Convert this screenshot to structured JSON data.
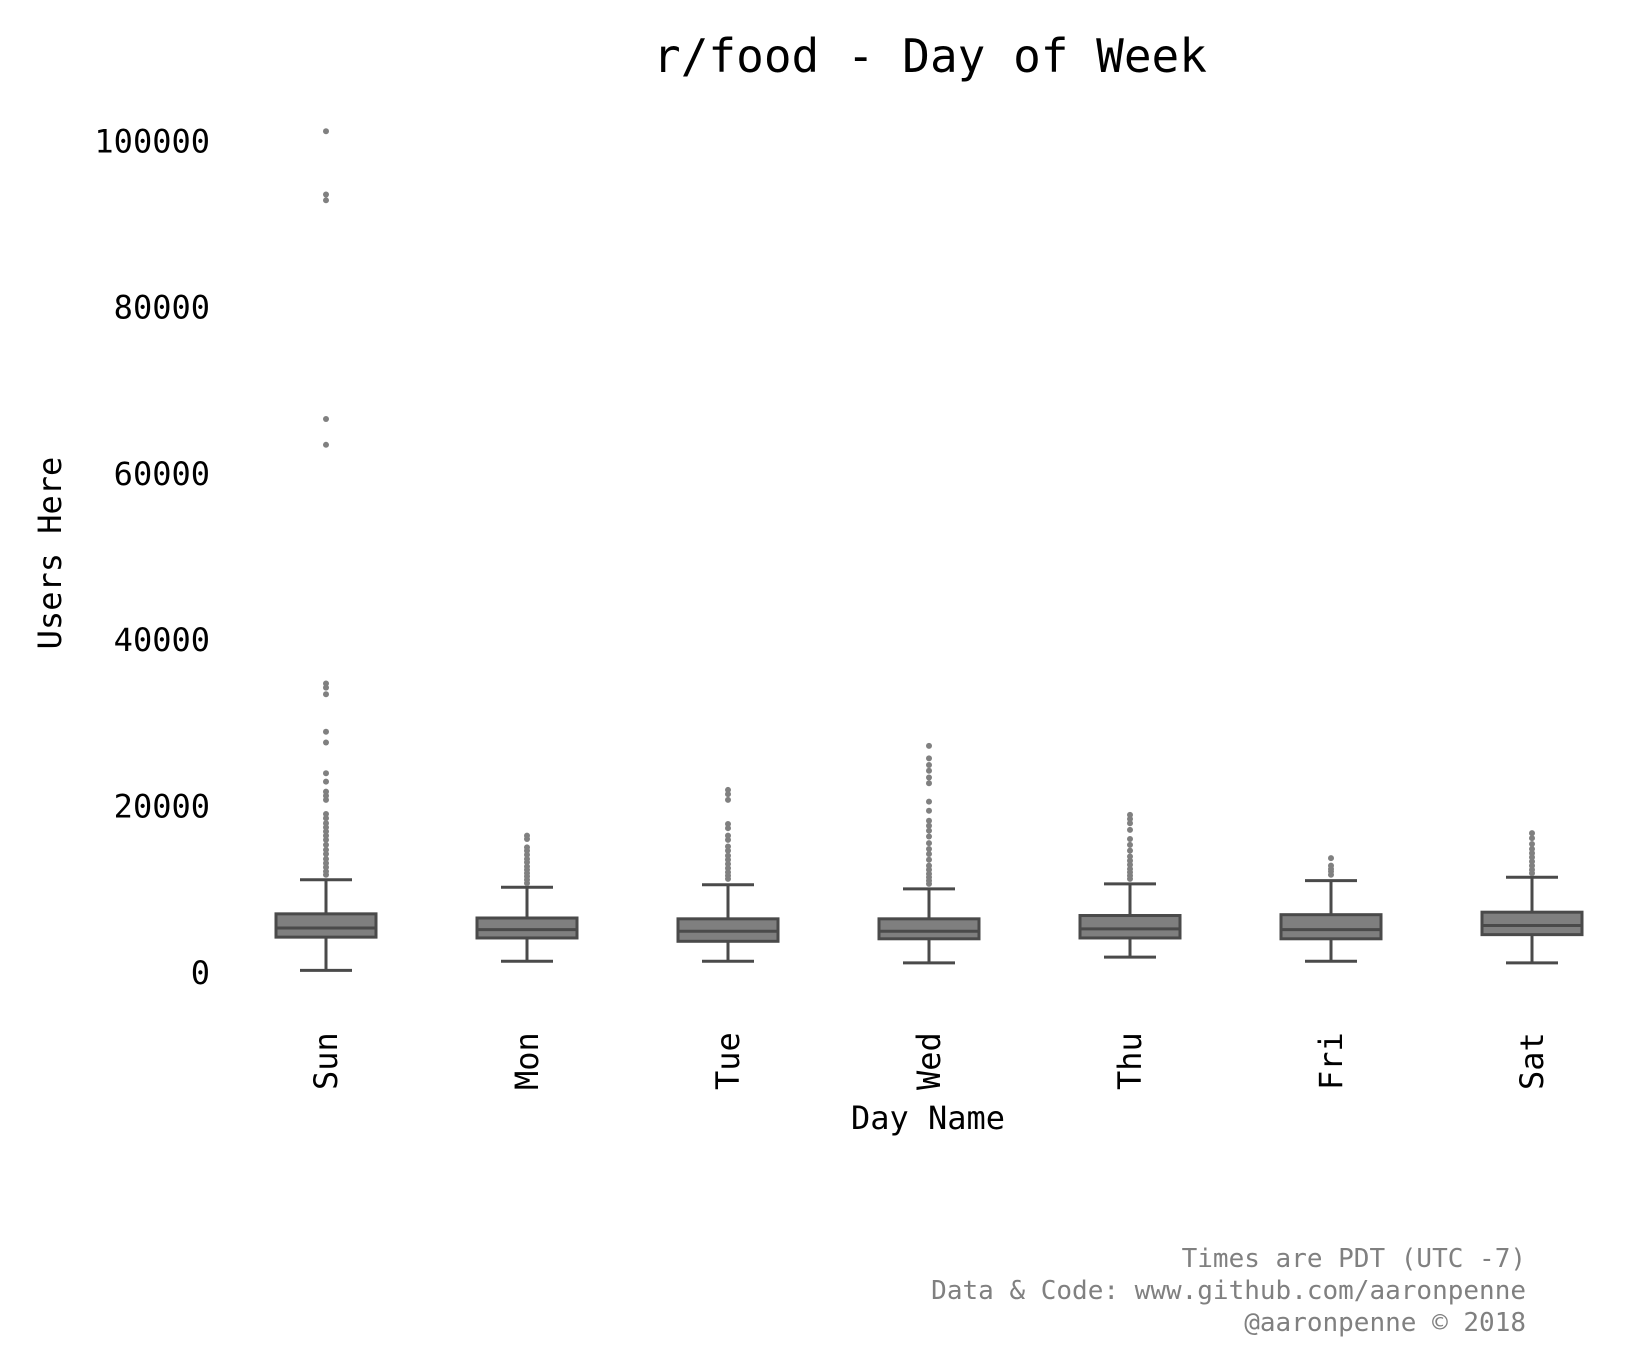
{
  "chart_data": {
    "type": "box",
    "title": "r/food - Day of Week",
    "xlabel": "Day Name",
    "ylabel": "Users Here",
    "ylim": [
      -3500,
      104000
    ],
    "yticks": [
      0,
      20000,
      40000,
      60000,
      80000,
      100000
    ],
    "grid": false,
    "box_color": "#7f7f7f",
    "line_color": "#4a4a4a",
    "outlier_color": "#808080",
    "categories": [
      "Sun",
      "Mon",
      "Tue",
      "Wed",
      "Thu",
      "Fri",
      "Sat"
    ],
    "boxes": [
      {
        "category": "Sun",
        "whisker_low": 300,
        "q1": 4300,
        "median": 5400,
        "q3": 7100,
        "whisker_high": 11200,
        "outliers": [
          101200,
          93600,
          92900,
          66600,
          63500,
          34800,
          34300,
          33500,
          29000,
          27700,
          24000,
          23000,
          21800,
          21300,
          20800,
          19100,
          18600,
          18000,
          17500,
          17000,
          16500,
          16000,
          15400,
          14800,
          14300,
          13700,
          13200,
          12700,
          12200,
          11800
        ]
      },
      {
        "category": "Mon",
        "whisker_low": 1400,
        "q1": 4200,
        "median": 5200,
        "q3": 6600,
        "whisker_high": 10300,
        "outliers": [
          16500,
          16100,
          15100,
          14700,
          14200,
          13700,
          13300,
          12800,
          12400,
          12000,
          11600,
          11200,
          10800
        ]
      },
      {
        "category": "Tue",
        "whisker_low": 1400,
        "q1": 3800,
        "median": 5000,
        "q3": 6500,
        "whisker_high": 10600,
        "outliers": [
          22000,
          21500,
          20800,
          17900,
          17400,
          16500,
          16000,
          15200,
          14700,
          14100,
          13600,
          13100,
          12600,
          12100,
          11700,
          11300
        ]
      },
      {
        "category": "Wed",
        "whisker_low": 1200,
        "q1": 4100,
        "median": 5000,
        "q3": 6500,
        "whisker_high": 10100,
        "outliers": [
          27300,
          25800,
          25000,
          24300,
          23500,
          22800,
          20600,
          19500,
          18300,
          17700,
          17100,
          16400,
          15600,
          14900,
          14300,
          13600,
          12900,
          12400,
          11900,
          11500,
          11100,
          10700
        ]
      },
      {
        "category": "Thu",
        "whisker_low": 1900,
        "q1": 4200,
        "median": 5300,
        "q3": 6900,
        "whisker_high": 10700,
        "outliers": [
          19000,
          18500,
          18000,
          17200,
          16100,
          15400,
          14700,
          14000,
          13500,
          13000,
          12500,
          12100,
          11700,
          11300
        ]
      },
      {
        "category": "Fri",
        "whisker_low": 1400,
        "q1": 4100,
        "median": 5200,
        "q3": 7000,
        "whisker_high": 11100,
        "outliers": [
          13800,
          12900,
          12500,
          12200,
          11800
        ]
      },
      {
        "category": "Sat",
        "whisker_low": 1200,
        "q1": 4600,
        "median": 5700,
        "q3": 7300,
        "whisker_high": 11500,
        "outliers": [
          16800,
          16200,
          15500,
          14900,
          14400,
          13900,
          13400,
          12900,
          12400,
          12000
        ]
      }
    ]
  },
  "footer": {
    "line1": "Times are PDT (UTC -7)",
    "line2": "Data & Code: www.github.com/aaronpenne",
    "line3": "@aaronpenne © 2018"
  }
}
